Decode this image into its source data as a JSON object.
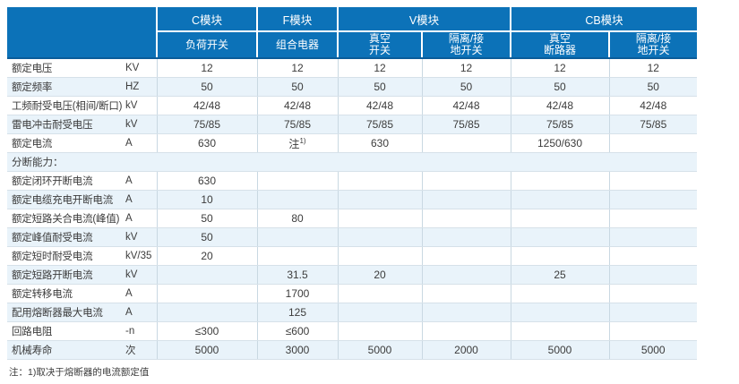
{
  "colors": {
    "header_bg": "#0c72b8",
    "header_edge": "#0a5c99",
    "header_text": "#ffffff",
    "row_alt_bg": "#e9f3fa",
    "grid_vertical": "#c9d8e2",
    "grid_horizontal": "#d6e1e9",
    "text": "#3c3c3c"
  },
  "table": {
    "header": {
      "corner": "",
      "modules": [
        {
          "label": "C模块",
          "span": 1
        },
        {
          "label": "F模块",
          "span": 1
        },
        {
          "label": "V模块",
          "span": 2
        },
        {
          "label": "CB模块",
          "span": 2
        }
      ],
      "submodules": [
        "负荷开关",
        "组合电器",
        "真空\n开关",
        "隔离/接\n地开关",
        "真空\n断路器",
        "隔离/接\n地开关"
      ]
    },
    "rows": [
      {
        "label": "额定电压",
        "unit": "KV",
        "values": [
          "12",
          "12",
          "12",
          "12",
          "12",
          "12"
        ]
      },
      {
        "label": "额定频率",
        "unit": "HZ",
        "values": [
          "50",
          "50",
          "50",
          "50",
          "50",
          "50"
        ]
      },
      {
        "label": "工频耐受电压(相间/断口)",
        "unit": "kV",
        "values": [
          "42/48",
          "42/48",
          "42/48",
          "42/48",
          "42/48",
          "42/48"
        ]
      },
      {
        "label": "雷电冲击耐受电压",
        "unit": "kV",
        "values": [
          "75/85",
          "75/85",
          "75/85",
          "75/85",
          "75/85",
          "75/85"
        ]
      },
      {
        "label": "额定电流",
        "unit": "A",
        "values": [
          "630",
          {
            "t": "注",
            "sup": "1)"
          },
          "630",
          "",
          "1250/630",
          ""
        ]
      },
      {
        "label": "分断能力：",
        "unit": "",
        "section": true,
        "values": []
      },
      {
        "label": "额定闭环开断电流",
        "unit": "A",
        "values": [
          "630",
          "",
          "",
          "",
          "",
          ""
        ]
      },
      {
        "label": "额定电缆充电开断电流",
        "unit": "A",
        "values": [
          "10",
          "",
          "",
          "",
          "",
          ""
        ]
      },
      {
        "label": "额定短路关合电流(峰值)",
        "unit": "A",
        "values": [
          "50",
          "80",
          "",
          "",
          "",
          ""
        ]
      },
      {
        "label": "额定峰值耐受电流",
        "unit": "kV",
        "values": [
          "50",
          "",
          "",
          "",
          "",
          ""
        ]
      },
      {
        "label": "额定短时耐受电流",
        "unit": "kV/35",
        "values": [
          "20",
          "",
          "",
          "",
          "",
          ""
        ]
      },
      {
        "label": "额定短路开断电流",
        "unit": "kV",
        "values": [
          "",
          "31.5",
          "20",
          "",
          "25",
          ""
        ]
      },
      {
        "label": "额定转移电流",
        "unit": "A",
        "values": [
          "",
          "1700",
          "",
          "",
          "",
          ""
        ]
      },
      {
        "label": "配用熔断器最大电流",
        "unit": "A",
        "values": [
          "",
          "125",
          "",
          "",
          "",
          ""
        ]
      },
      {
        "label": "回路电阻",
        "unit": "-n",
        "values": [
          "≤300",
          "≤600",
          "",
          "",
          "",
          ""
        ]
      },
      {
        "label": "机械寿命",
        "unit": "次",
        "values": [
          "5000",
          "3000",
          "5000",
          "2000",
          "5000",
          "5000"
        ]
      }
    ],
    "footnote": "注：1)取决于熔断器的电流额定值"
  }
}
